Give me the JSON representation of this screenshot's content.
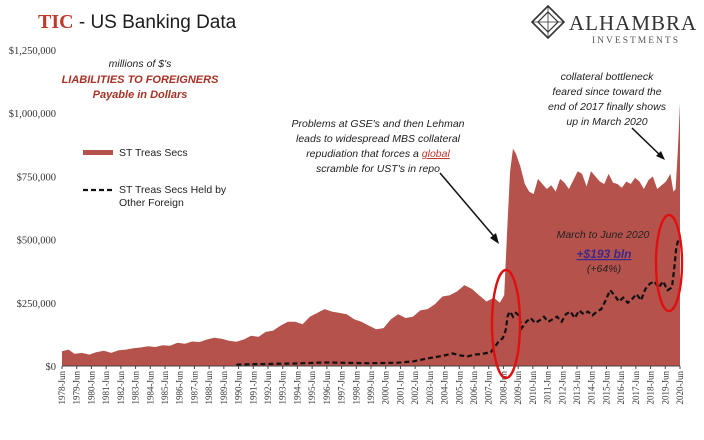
{
  "header": {
    "title_prefix": "TIC",
    "title_rest": " - US Banking Data"
  },
  "logo": {
    "name": "ALHAMBRA",
    "sub": "INVESTMENTS"
  },
  "colors": {
    "area": "#a94442",
    "area_fill": "#b5524c",
    "dashed_line": "#111111",
    "highlight_circle": "#e01010",
    "accent_red": "#c0392b",
    "accent_purple": "#3b2a8a"
  },
  "chart_data": {
    "type": "area",
    "subtitle_lines": [
      "millions of $'s",
      "LIABILITIES TO FOREIGNERS",
      "Payable in Dollars"
    ],
    "ylim": [
      0,
      1250000
    ],
    "y_ticks": [
      0,
      250000,
      500000,
      750000,
      1000000,
      1250000
    ],
    "y_tick_labels": [
      "$0",
      "$250,000",
      "$500,000",
      "$750,000",
      "$1,000,000",
      "$1,250,000"
    ],
    "x_range": [
      1978.45,
      2020.45
    ],
    "x_tick_labels": [
      "1978-Jun",
      "1979-Jun",
      "1980-Jun",
      "1981-Jun",
      "1982-Jun",
      "1983-Jun",
      "1984-Jun",
      "1985-Jun",
      "1986-Jun",
      "1987-Jun",
      "1988-Jun",
      "1989-Jun",
      "1990-Jun",
      "1991-Jun",
      "1992-Jun",
      "1993-Jun",
      "1994-Jun",
      "1995-Jun",
      "1996-Jun",
      "1997-Jun",
      "1998-Jun",
      "1999-Jun",
      "2000-Jun",
      "2001-Jun",
      "2002-Jun",
      "2003-Jun",
      "2004-Jun",
      "2005-Jun",
      "2006-Jun",
      "2007-Jun",
      "2008-Jun",
      "2009-Jun",
      "2010-Jun",
      "2011-Jun",
      "2012-Jun",
      "2013-Jun",
      "2014-Jun",
      "2015-Jun",
      "2016-Jun",
      "2017-Jun",
      "2018-Jun",
      "2019-Jun",
      "2020-Jun"
    ],
    "series": [
      {
        "name": "ST Treas Secs",
        "style": "area",
        "x": [
          1978.45,
          1978.9,
          1979.3,
          1979.8,
          1980.3,
          1980.8,
          1981.3,
          1981.8,
          1982.3,
          1982.8,
          1983.3,
          1983.8,
          1984.3,
          1984.8,
          1985.3,
          1985.8,
          1986.3,
          1986.8,
          1987.3,
          1987.8,
          1988.3,
          1988.8,
          1989.3,
          1989.8,
          1990.3,
          1990.8,
          1991.3,
          1991.8,
          1992.3,
          1992.8,
          1993.3,
          1993.8,
          1994.3,
          1994.8,
          1995.3,
          1995.8,
          1996.3,
          1996.8,
          1997.3,
          1997.8,
          1998.3,
          1998.8,
          1999.3,
          1999.8,
          2000.3,
          2000.8,
          2001.3,
          2001.8,
          2002.3,
          2002.8,
          2003.3,
          2003.8,
          2004.3,
          2004.8,
          2005.3,
          2005.8,
          2006.3,
          2006.8,
          2007.3,
          2007.8,
          2008.2,
          2008.5,
          2008.7,
          2008.9,
          2009.1,
          2009.3,
          2009.6,
          2009.9,
          2010.2,
          2010.5,
          2010.8,
          2011.1,
          2011.4,
          2011.7,
          2012.0,
          2012.3,
          2012.6,
          2012.9,
          2013.2,
          2013.5,
          2013.8,
          2014.1,
          2014.4,
          2014.7,
          2015.0,
          2015.3,
          2015.6,
          2015.9,
          2016.2,
          2016.5,
          2016.8,
          2017.1,
          2017.4,
          2017.7,
          2018.0,
          2018.3,
          2018.6,
          2018.9,
          2019.2,
          2019.5,
          2019.8,
          2020.0,
          2020.15,
          2020.3,
          2020.45
        ],
        "values": [
          58000,
          65000,
          48000,
          52000,
          45000,
          55000,
          60000,
          52000,
          62000,
          65000,
          70000,
          73000,
          78000,
          75000,
          82000,
          80000,
          92000,
          88000,
          97000,
          95000,
          105000,
          112000,
          108000,
          100000,
          96000,
          105000,
          120000,
          115000,
          135000,
          140000,
          160000,
          175000,
          175000,
          165000,
          195000,
          210000,
          225000,
          215000,
          210000,
          205000,
          185000,
          175000,
          160000,
          145000,
          150000,
          185000,
          205000,
          190000,
          195000,
          220000,
          225000,
          245000,
          275000,
          280000,
          295000,
          320000,
          305000,
          280000,
          255000,
          270000,
          250000,
          280000,
          530000,
          770000,
          860000,
          840000,
          790000,
          720000,
          690000,
          680000,
          740000,
          720000,
          700000,
          715000,
          690000,
          740000,
          725000,
          700000,
          735000,
          770000,
          760000,
          710000,
          770000,
          750000,
          730000,
          720000,
          760000,
          725000,
          720000,
          705000,
          730000,
          720000,
          745000,
          730000,
          700000,
          735000,
          750000,
          700000,
          715000,
          730000,
          760000,
          690000,
          700000,
          850000,
          1040000
        ]
      },
      {
        "name": "ST Treas Secs Held by Other Foreign",
        "style": "dashed",
        "x": [
          1990.3,
          1991.3,
          1992.3,
          1993.3,
          1994.3,
          1995.3,
          1996.3,
          1997.3,
          1998.3,
          1999.3,
          2000.3,
          2001.3,
          2002.3,
          2003.3,
          2004.3,
          2005.0,
          2005.5,
          2006.0,
          2006.5,
          2007.0,
          2007.6,
          2008.1,
          2008.4,
          2008.6,
          2008.75,
          2008.9,
          2009.1,
          2009.3,
          2009.5,
          2009.7,
          2010.0,
          2010.3,
          2010.6,
          2010.9,
          2011.2,
          2011.5,
          2011.8,
          2012.1,
          2012.4,
          2012.7,
          2013.0,
          2013.3,
          2013.6,
          2013.9,
          2014.2,
          2014.5,
          2014.8,
          2015.1,
          2015.4,
          2015.7,
          2016.0,
          2016.3,
          2016.6,
          2016.9,
          2017.2,
          2017.5,
          2017.8,
          2018.1,
          2018.4,
          2018.7,
          2019.0,
          2019.3,
          2019.6,
          2019.9,
          2020.05,
          2020.2,
          2020.35,
          2020.45
        ],
        "values": [
          5000,
          7000,
          8000,
          9000,
          10000,
          12000,
          14000,
          13000,
          12000,
          11000,
          12000,
          13000,
          18000,
          30000,
          40000,
          50000,
          42000,
          38000,
          45000,
          48000,
          55000,
          95000,
          110000,
          140000,
          200000,
          215000,
          195000,
          210000,
          200000,
          150000,
          175000,
          190000,
          170000,
          180000,
          195000,
          175000,
          185000,
          195000,
          175000,
          205000,
          215000,
          190000,
          220000,
          205000,
          215000,
          200000,
          215000,
          225000,
          260000,
          300000,
          280000,
          255000,
          270000,
          250000,
          265000,
          285000,
          260000,
          305000,
          325000,
          335000,
          310000,
          335000,
          300000,
          310000,
          380000,
          470000,
          500000,
          495000
        ]
      }
    ],
    "annotations": {
      "crisis_lines": [
        "Problems at GSE's and then Lehman",
        "leads to widespread MBS collateral",
        "repudiation that forces a ",
        "global",
        " scramble for UST's in repo"
      ],
      "covid_lines": [
        "collateral bottleneck",
        "feared since toward the",
        "end of  2017 finally shows",
        "up in March 2020"
      ],
      "change_title": "March to June 2020",
      "change_value": "+$193 bln",
      "change_pct": "(+64%)"
    },
    "legend_position": "left-middle"
  }
}
